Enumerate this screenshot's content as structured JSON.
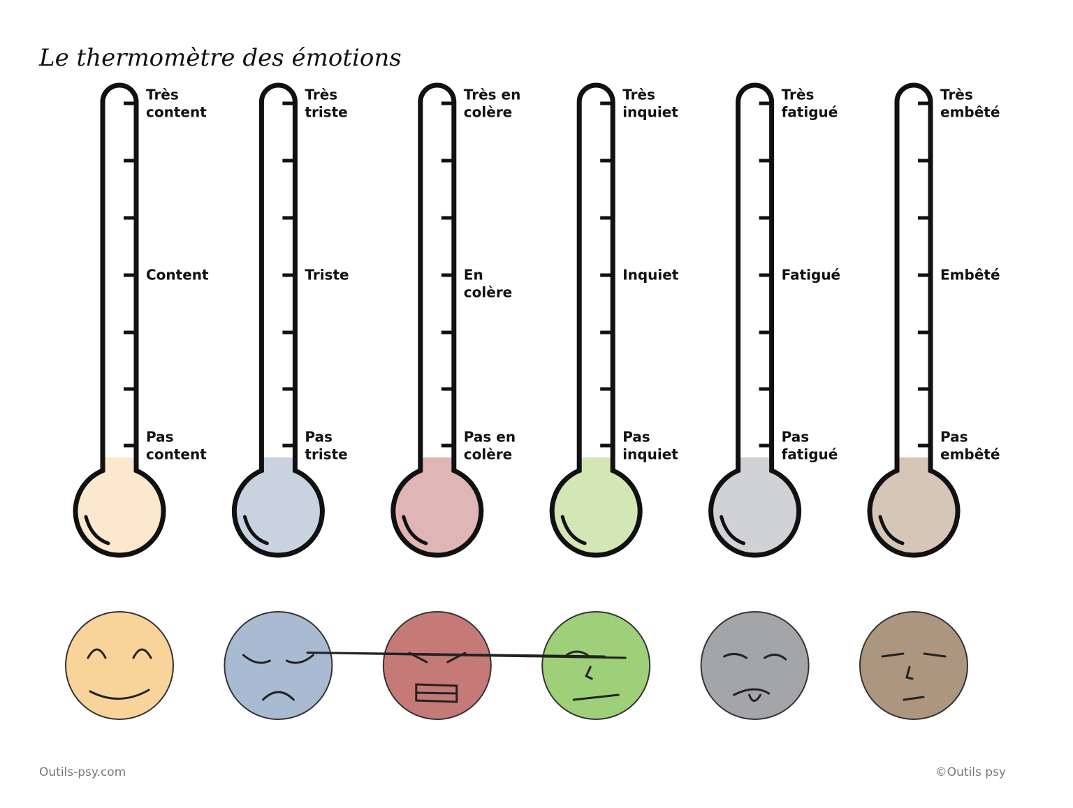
{
  "header": {
    "title": "Le thermomètre des émotions"
  },
  "thermometers": [
    {
      "top": [
        "Très",
        "content"
      ],
      "middle": [
        "Content"
      ],
      "bottom": [
        "Pas",
        "content"
      ]
    },
    {
      "top": [
        "Très",
        "triste"
      ],
      "middle": [
        "Triste"
      ],
      "bottom": [
        "Pas",
        "triste"
      ]
    },
    {
      "top": [
        "Très en",
        "colère"
      ],
      "middle": [
        "En",
        "colère"
      ],
      "bottom": [
        "Pas en",
        "colère"
      ]
    },
    {
      "top": [
        "Très",
        "inquiet"
      ],
      "middle": [
        "Inquiet"
      ],
      "bottom": [
        "Pas",
        "inquiet"
      ]
    },
    {
      "top": [
        "Très",
        "fatigué"
      ],
      "middle": [
        "Fatigué"
      ],
      "bottom": [
        "Pas",
        "fatigué"
      ]
    },
    {
      "top": [
        "Très",
        "embêté"
      ],
      "middle": [
        "Embêté"
      ],
      "bottom": [
        "Pas",
        "embêté"
      ]
    }
  ],
  "footer": {
    "left": "Outils-psy.com",
    "right": "©Outils psy"
  }
}
